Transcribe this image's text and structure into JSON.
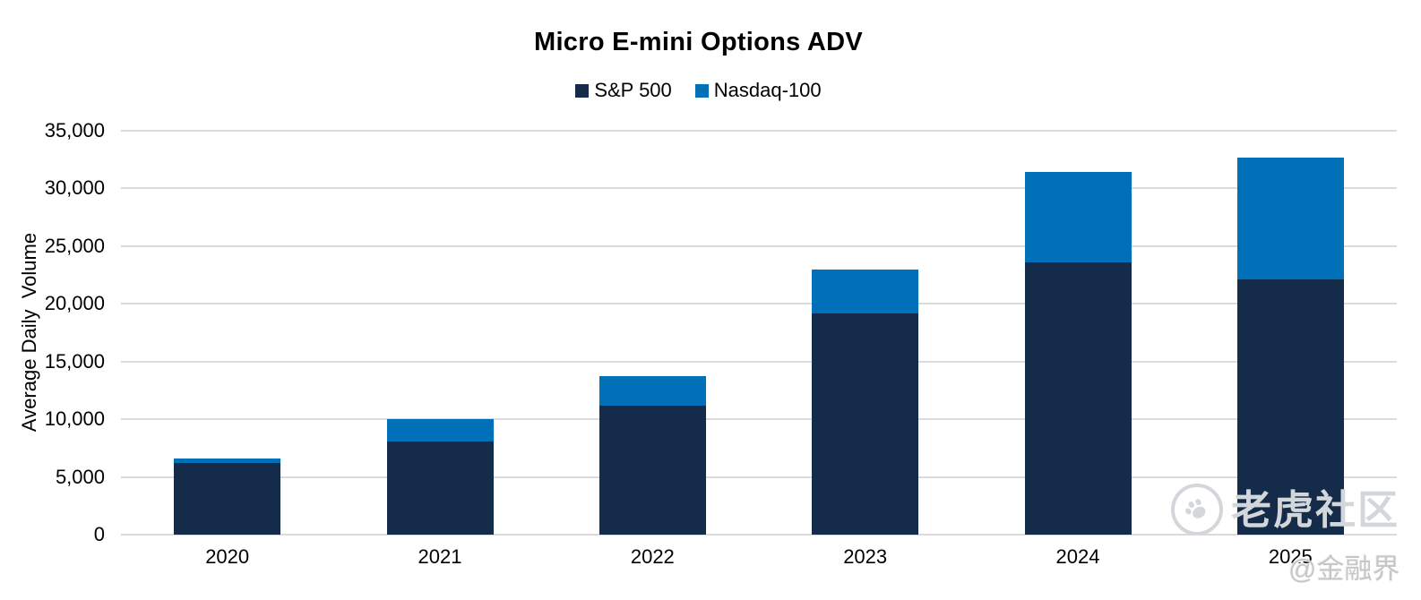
{
  "title": "Micro E-mini Options ADV",
  "y_axis_title": "Average Daily  Volume",
  "watermark": {
    "community": "老虎社区",
    "source": "@金融界"
  },
  "colors": {
    "sp500": "#142C4A",
    "nasdaq100": "#0070B8",
    "gridline": "#DBDBDB",
    "watermark_gray": "#D3D6DA"
  },
  "chart_data": {
    "type": "bar",
    "stacked": true,
    "title": "Micro E-mini Options ADV",
    "xlabel": "",
    "ylabel": "Average Daily  Volume",
    "categories": [
      "2020",
      "2021",
      "2022",
      "2023",
      "2024",
      "2025"
    ],
    "series": [
      {
        "name": "S&P 500",
        "color": "#142C4A",
        "values": [
          6200,
          8100,
          11200,
          19200,
          23600,
          22100
        ]
      },
      {
        "name": "Nasdaq-100",
        "color": "#0070B8",
        "values": [
          400,
          1900,
          2500,
          3800,
          7800,
          10600
        ]
      }
    ],
    "stack_totals": [
      6600,
      10000,
      13700,
      23000,
      31400,
      32700
    ],
    "ylim": [
      0,
      35000
    ],
    "ytick_step": 5000,
    "ytick_labels": [
      "0",
      "5,000",
      "10,000",
      "15,000",
      "20,000",
      "25,000",
      "30,000",
      "35,000"
    ],
    "grid": true,
    "legend_position": "top-center"
  }
}
